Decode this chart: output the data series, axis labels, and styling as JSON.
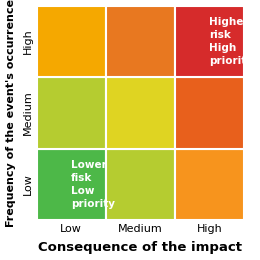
{
  "title_x": "Consequence of the impact",
  "title_y": "Frequency of the event's occurrence",
  "x_labels": [
    "Low",
    "Medium",
    "High"
  ],
  "y_labels": [
    "Low",
    "Medium",
    "High"
  ],
  "cell_colors": [
    [
      "#4db848",
      "#b5cc30",
      "#f7941d"
    ],
    [
      "#b5cc30",
      "#dfd422",
      "#e8601c"
    ],
    [
      "#f5a800",
      "#e87820",
      "#d62b2b"
    ]
  ],
  "annotations": [
    {
      "row": 0,
      "col": 0,
      "text": "Lower\nfisk\nLow\npriority",
      "color": "#ffffff"
    },
    {
      "row": 2,
      "col": 2,
      "text": "Higher\nrisk\nHigh\npriority",
      "color": "#ffffff"
    }
  ],
  "xlabel_fontsize": 9.5,
  "ylabel_fontsize": 8,
  "tick_fontsize": 8,
  "annot_fontsize": 7.5,
  "bg_color": "#ffffff",
  "grid_color": "#ffffff",
  "grid_linewidth": 1.5
}
